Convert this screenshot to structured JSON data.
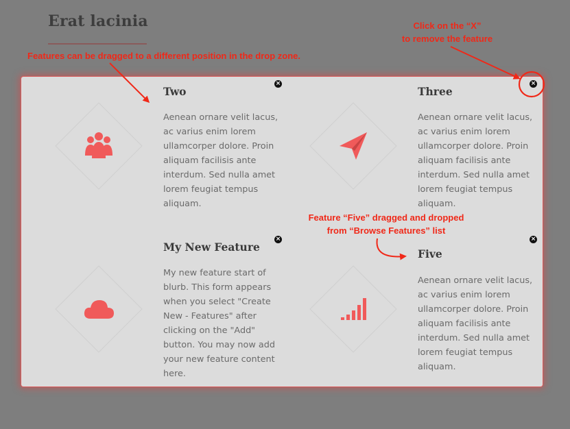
{
  "page": {
    "title": "Erat lacinia"
  },
  "annotations": {
    "drag_hint": "Features can be dragged to a different position in the drop zone.",
    "remove_hint": "Click on the “X”\nto remove the feature",
    "dropped_hint": "Feature “Five” dragged and dropped\nfrom “Browse Features” list"
  },
  "features": [
    {
      "title": "Two",
      "icon": "users-icon",
      "body": "Aenean ornare velit lacus,\nac varius enim lorem\nullamcorper dolore. Proin\naliquam facilisis ante\ninterdum. Sed nulla amet\nlorem feugiat tempus\naliquam."
    },
    {
      "title": "Three",
      "icon": "paper-plane-icon",
      "body": "Aenean ornare velit lacus,\nac varius enim lorem\nullamcorper dolore. Proin\naliquam facilisis ante\ninterdum. Sed nulla amet\nlorem feugiat tempus\naliquam."
    },
    {
      "title": "My New Feature",
      "icon": "cloud-icon",
      "body": "My new feature start of\nblurb.  This form appears\nwhen you select \"Create\nNew - Features\" after\nclicking on the \"Add\"\nbutton.  You may now add\nyour new feature content\nhere."
    },
    {
      "title": "Five",
      "icon": "signal-bars-icon",
      "body": "Aenean ornare velit lacus,\nac varius enim lorem\nullamcorper dolore. Proin\naliquam facilisis ante\ninterdum. Sed nulla amet\nlorem feugiat tempus\naliquam."
    }
  ],
  "colors": {
    "accent": "#f05a5a",
    "annotation": "#f02818",
    "backdrop": "#7e7e7e",
    "drop_zone": "#dcdcdc"
  }
}
